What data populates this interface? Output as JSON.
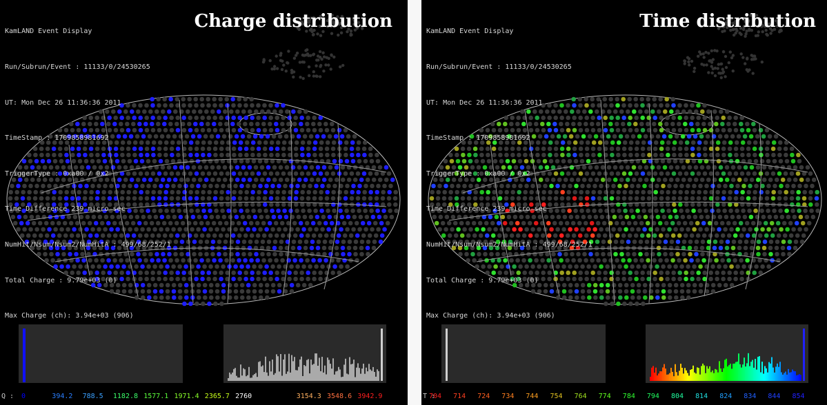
{
  "info_lines": [
    "KamLAND Event Display",
    "Run/Subrun/Event : 11133/0/24530265",
    "UT: Mon Dec 26 11:36:36 2011",
    "TimeStamp : 1709858981692",
    "TriggerType : 0xa00 / 0x2",
    "Time Difference 239 micro sec",
    "NumHit/Nsum/Nsum2/NumHitA : 499/68/252/1",
    "Total Charge : 9.79e+03 (0)",
    "Max Charge (ch): 3.94e+03 (906)"
  ],
  "charge_panel": {
    "title": "Charge distribution",
    "scale_label": "Q :",
    "scale_values": [
      "0",
      "394.2",
      "788.5",
      "1182.8",
      "1577.1",
      "1971.4",
      "2365.7",
      "2760",
      "",
      "3154.3",
      "3548.6",
      "3942.9"
    ],
    "scale_colors": [
      "#0000ff",
      "#2a7fff",
      "#3aa0ff",
      "#3cff6a",
      "#5cff3c",
      "#8aff2a",
      "#c8ff1a",
      "#ffffff",
      "#ffffff",
      "#ffb060",
      "#ff7040",
      "#ff2020"
    ],
    "hit_color": "#1e1eff"
  },
  "time_panel": {
    "title": "Time distribution",
    "scale_label": "T :",
    "scale_values": [
      "704",
      "714",
      "724",
      "734",
      "744",
      "754",
      "764",
      "774",
      "784",
      "794",
      "804",
      "814",
      "824",
      "834",
      "844",
      "854"
    ],
    "scale_colors": [
      "#ff2020",
      "#ff4020",
      "#ff6020",
      "#ff8020",
      "#ffa020",
      "#e0c020",
      "#a0e020",
      "#60ff20",
      "#30ff30",
      "#20ff60",
      "#20ffa0",
      "#20e0e0",
      "#20a0ff",
      "#2060ff",
      "#2040ff",
      "#2020ff"
    ]
  }
}
